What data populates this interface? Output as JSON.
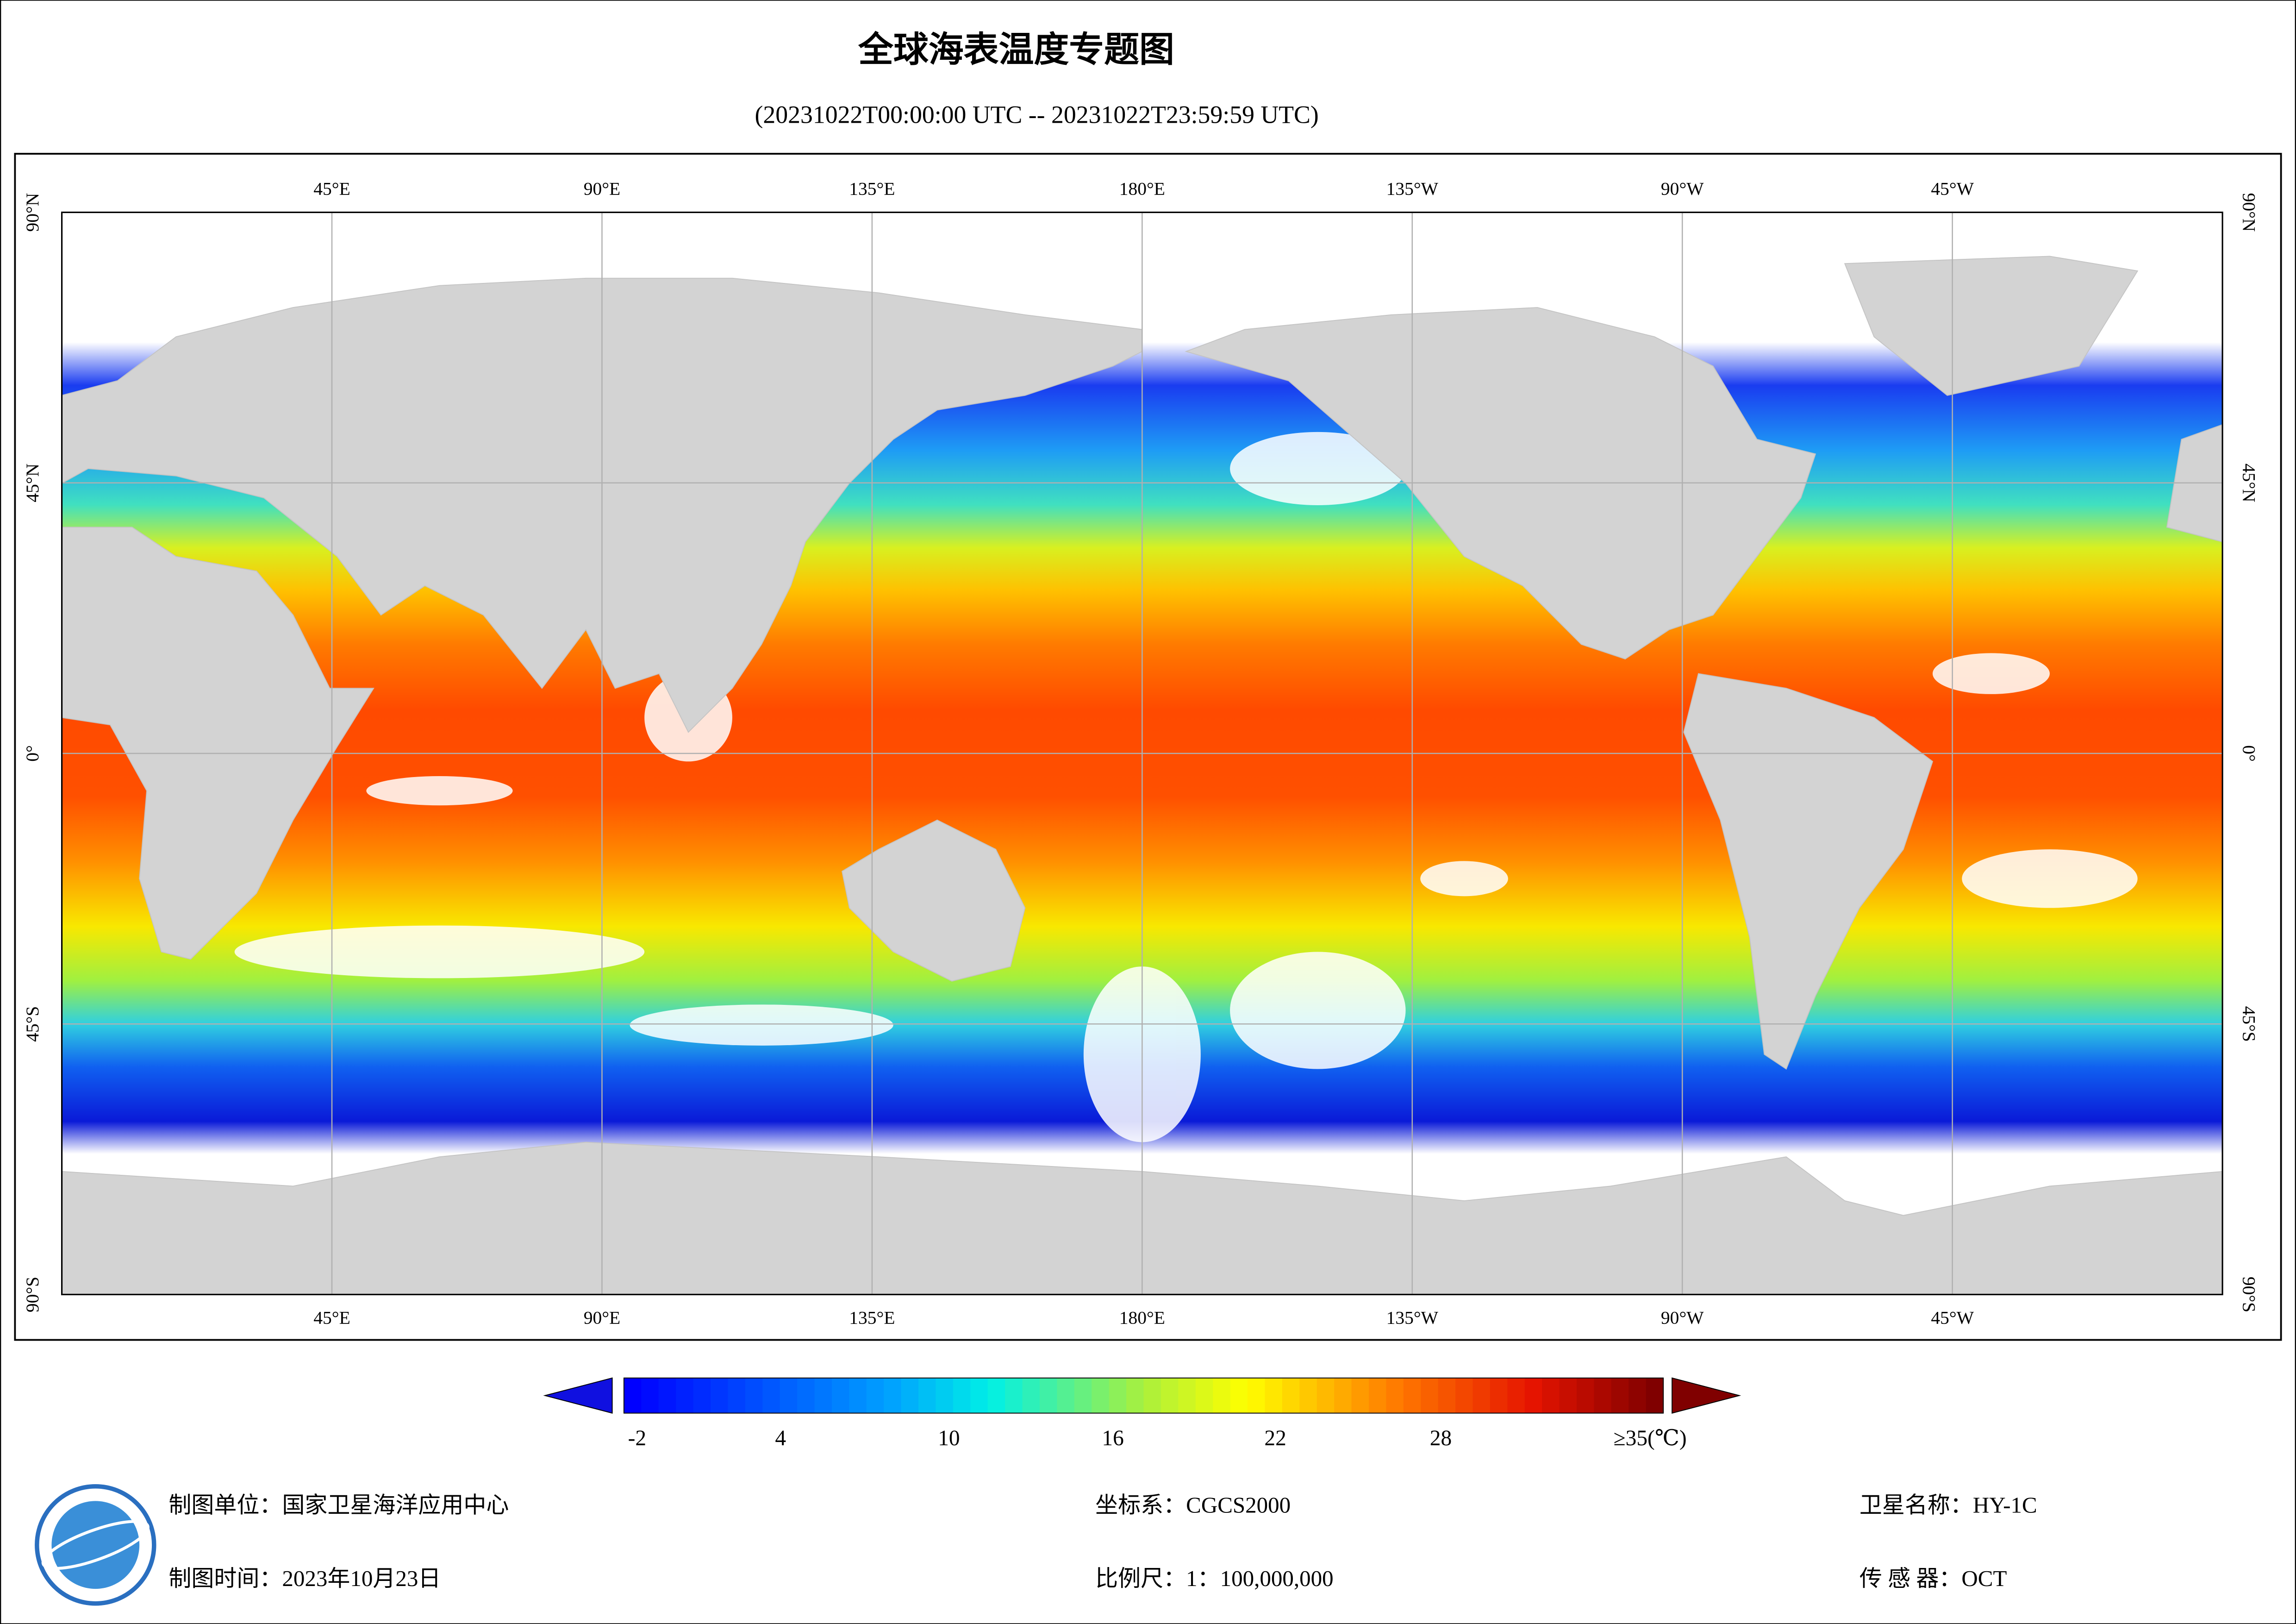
{
  "header": {
    "title": "全球海表温度专题图",
    "subtitle": "(20231022T00:00:00 UTC -- 20231022T23:59:59 UTC)"
  },
  "map": {
    "lon_labels": [
      "45°E",
      "90°E",
      "135°E",
      "180°E",
      "135°W",
      "90°W",
      "45°W"
    ],
    "lat_labels": [
      "90°N",
      "45°N",
      "0°",
      "45°S",
      "90°S"
    ]
  },
  "colorbar": {
    "labels": [
      "-2",
      "4",
      "10",
      "16",
      "22",
      "28",
      "≥35(℃)"
    ]
  },
  "footer": {
    "unit": "制图单位：国家卫星海洋应用中心",
    "date": "制图时间：2023年10月23日",
    "crs": "坐标系：CGCS2000",
    "scale": "比例尺：1：100,000,000",
    "satellite": "卫星名称：HY-1C",
    "sensor": "传 感 器：OCT"
  }
}
